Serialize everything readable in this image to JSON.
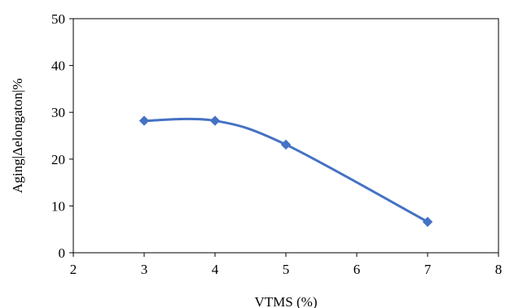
{
  "chart_data": {
    "type": "line",
    "title": "",
    "xlabel": "VTMS (%)",
    "ylabel": "Aging|Δelongaton|%",
    "xlim": [
      2,
      8
    ],
    "ylim": [
      0,
      50
    ],
    "xticks": [
      "2",
      "3",
      "4",
      "5",
      "6",
      "7",
      "8"
    ],
    "yticks": [
      "0",
      "10",
      "20",
      "30",
      "40",
      "50"
    ],
    "grid": false,
    "legend": "none",
    "smooth": true,
    "series": [
      {
        "color": "#4472C4",
        "marker": "diamond",
        "x": [
          3,
          4,
          5,
          7
        ],
        "y": [
          28.2,
          28.2,
          23.1,
          6.6
        ]
      }
    ]
  }
}
